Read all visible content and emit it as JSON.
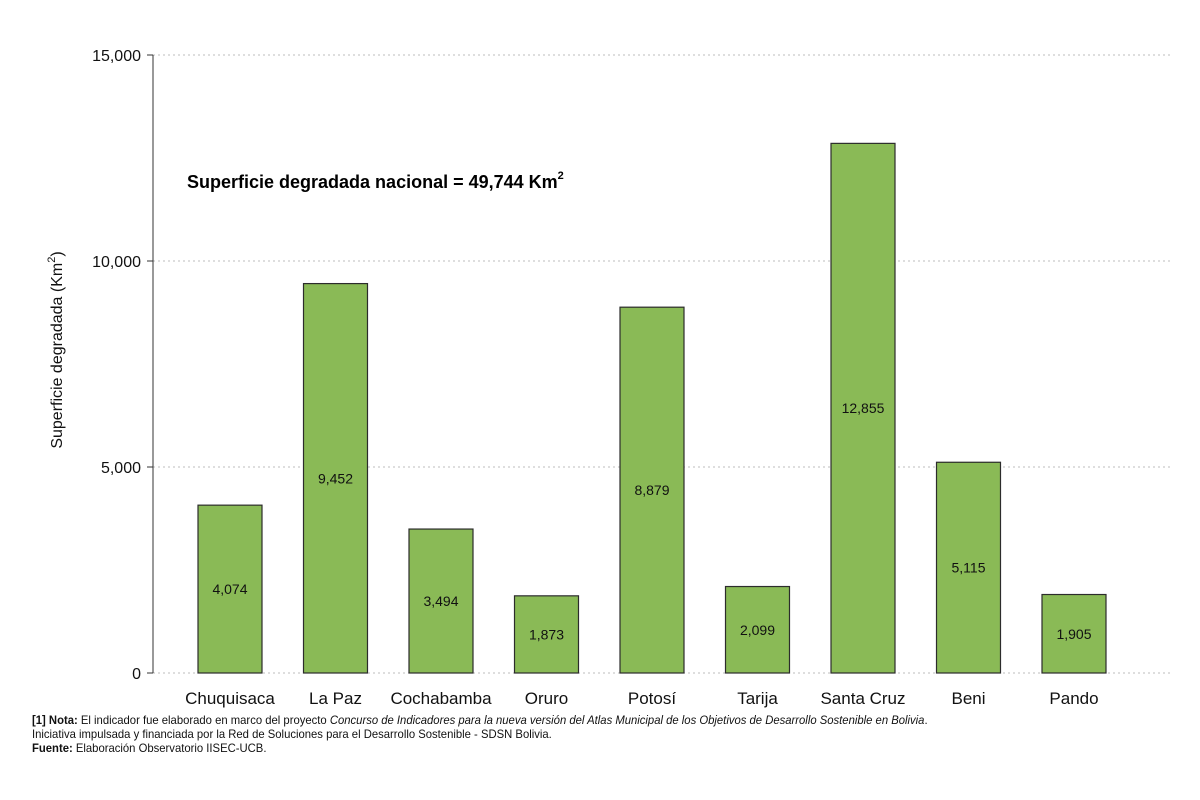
{
  "chart_data": {
    "type": "bar",
    "categories": [
      "Chuquisaca",
      "La Paz",
      "Cochabamba",
      "Oruro",
      "Potosí",
      "Tarija",
      "Santa Cruz",
      "Beni",
      "Pando"
    ],
    "values": [
      4074,
      9452,
      3494,
      1873,
      8879,
      2099,
      12855,
      5115,
      1905
    ],
    "value_labels": [
      "4,074",
      "9,452",
      "3,494",
      "1,873",
      "8,879",
      "2,099",
      "12,855",
      "5,115",
      "1,905"
    ],
    "ylabel_main": "Superficie degradada (Km",
    "ylabel_sup": "2",
    "ylabel_end": ")",
    "ylim": [
      0,
      15000
    ],
    "yticks": [
      0,
      5000,
      10000,
      15000
    ],
    "ytick_labels": [
      "0",
      "5,000",
      "10,000",
      "15,000"
    ],
    "grid": "horizontal dotted",
    "bar_color": "#8aba56",
    "annotation": {
      "main": "Superficie degradada nacional = 49,744 Km",
      "sup": "2"
    }
  },
  "footnote": {
    "line1_bold": "[1] Nota:",
    "line1_text": " El indicador fue elaborado en marco del proyecto ",
    "line1_italic": "Concurso de Indicadores para la nueva versión del Atlas Municipal de los Objetivos de Desarrollo Sostenible en Bolivia",
    "line1_end": ".",
    "line2": "Iniciativa impulsada y financiada por la Red de Soluciones para el Desarrollo Sostenible - SDSN Bolivia.",
    "line3_bold": "Fuente:",
    "line3_text": " Elaboración Observatorio IISEC-UCB."
  }
}
